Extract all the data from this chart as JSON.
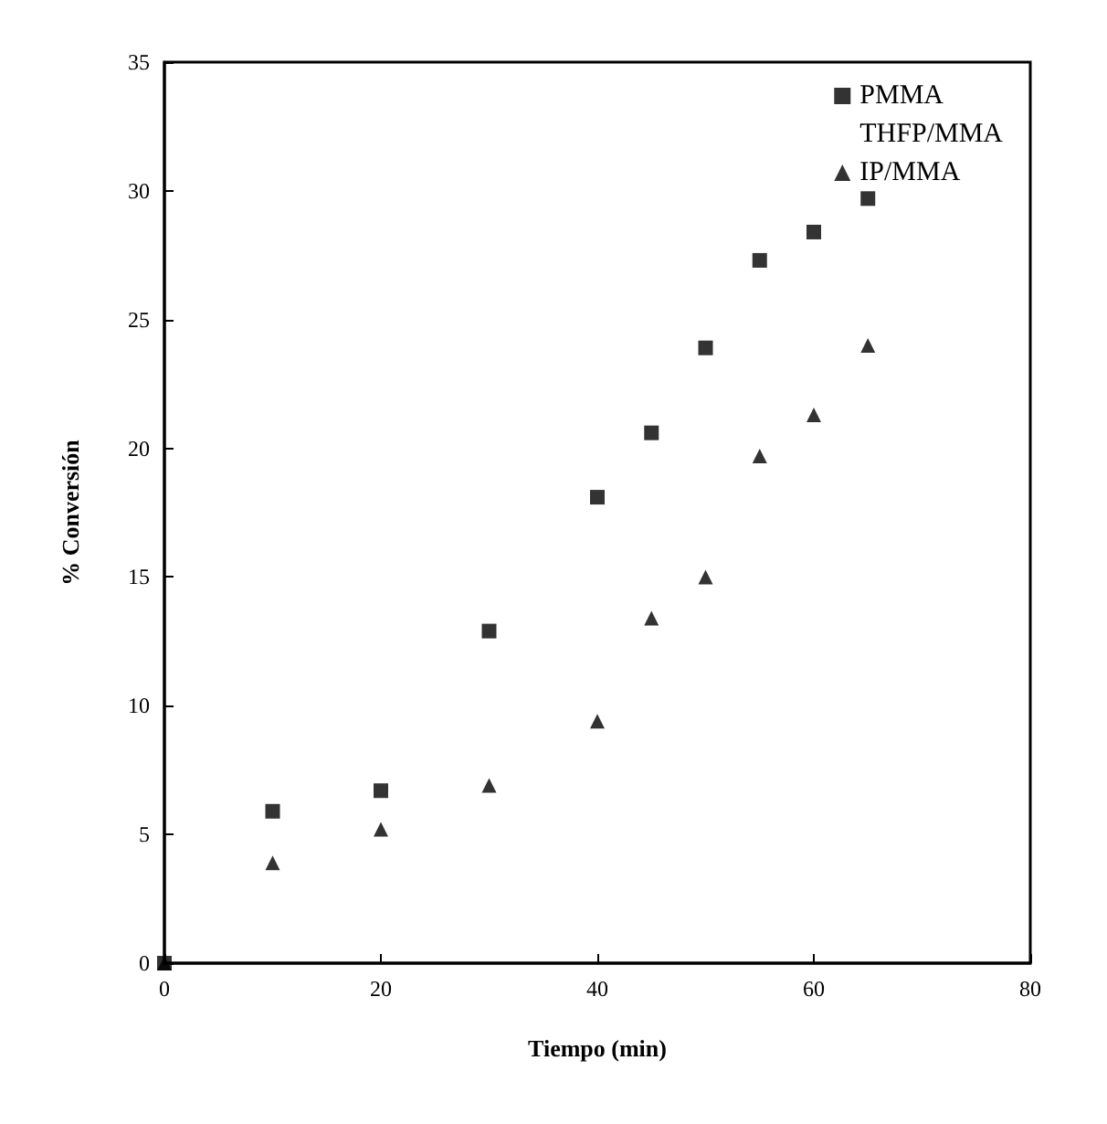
{
  "chart_data": {
    "type": "scatter",
    "xlabel": "Tiempo (min)",
    "ylabel": "% Conversión",
    "xlim": [
      0,
      80
    ],
    "xticks": [
      0,
      20,
      40,
      60,
      80
    ],
    "ylim": [
      0,
      35
    ],
    "yticks": [
      0,
      5,
      10,
      15,
      20,
      25,
      30,
      35
    ],
    "grid": false,
    "legend": "top right",
    "series": [
      {
        "name": "PMMA",
        "color": "#000000",
        "marker": "square",
        "x": [
          0,
          10,
          20,
          30,
          40,
          45,
          50,
          55,
          60,
          65
        ],
        "values": [
          0,
          5.9,
          6.7,
          12.9,
          18.1,
          20.6,
          23.9,
          27.3,
          28.4,
          29.7
        ]
      },
      {
        "name": "THFP/MMA",
        "color": "#000000",
        "marker": "none"
      },
      {
        "name": "IP/MMA",
        "color": "#000000",
        "marker": "triangle",
        "x": [
          0,
          10,
          20,
          30,
          40,
          45,
          50,
          55,
          60,
          65
        ],
        "values": [
          0,
          3.9,
          5.2,
          6.9,
          9.4,
          13.4,
          15.0,
          19.7,
          21.3,
          24.0
        ]
      }
    ]
  }
}
